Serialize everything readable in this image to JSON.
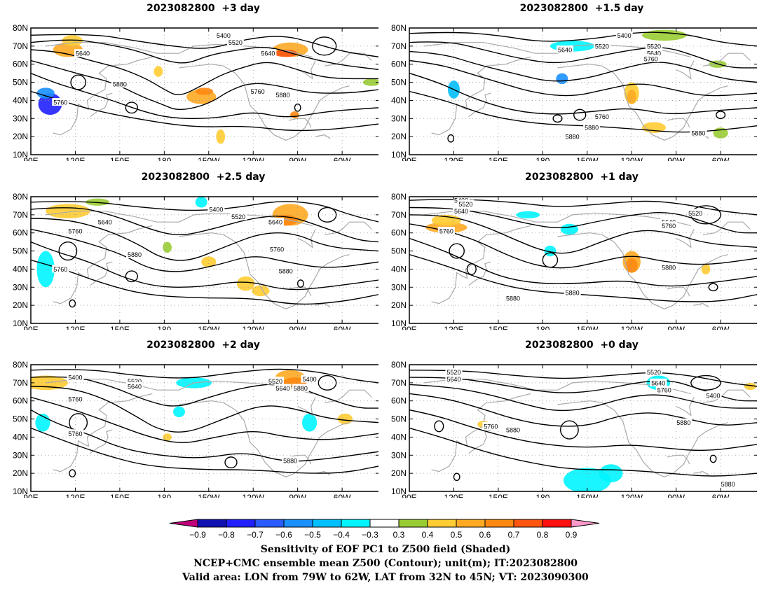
{
  "panels": [
    {
      "title": "2023082800  +3 day"
    },
    {
      "title": "2023082800  +1.5 day"
    },
    {
      "title": "2023082800  +2.5 day"
    },
    {
      "title": "2023082800  +1 day"
    },
    {
      "title": "2023082800  +2 day"
    },
    {
      "title": "2023082800  +0 day"
    }
  ],
  "map": {
    "lat_labels": [
      "80N",
      "70N",
      "60N",
      "50N",
      "40N",
      "30N",
      "20N",
      "10N"
    ],
    "lon_labels": [
      "90E",
      "120E",
      "150E",
      "180",
      "150W",
      "120W",
      "90W",
      "60W"
    ],
    "lat_range": [
      10,
      80
    ],
    "lon_range_east": [
      90,
      325
    ],
    "gridlines": "dotted"
  },
  "contour_labels": [
    [
      "5400",
      "5520",
      "5640",
      "5640",
      "5760",
      "5760",
      "5880",
      "5880"
    ],
    [
      "5400",
      "5520",
      "5640",
      "5520",
      "5640",
      "5760",
      "5760",
      "5880",
      "5880",
      "5880"
    ],
    [
      "5400",
      "5520",
      "5640",
      "5640",
      "5760",
      "5760",
      "5760",
      "5880",
      "5880"
    ],
    [
      "5400",
      "5520",
      "5640",
      "5760",
      "5520",
      "5640",
      "5760",
      "5880",
      "5880",
      "5880"
    ],
    [
      "5400",
      "5520",
      "5640",
      "5400",
      "5520",
      "5640",
      "5760",
      "5760",
      "5880",
      "5880"
    ],
    [
      "5520",
      "5640",
      "5520",
      "5640",
      "5760",
      "5400",
      "5760",
      "5880",
      "5880",
      "5880"
    ]
  ],
  "colorbar": {
    "ticks": [
      "−0.9",
      "−0.8",
      "−0.7",
      "−0.6",
      "−0.5",
      "−0.4",
      "−0.3",
      "0.3",
      "0.4",
      "0.5",
      "0.6",
      "0.7",
      "0.8",
      "0.9"
    ],
    "colors": [
      "#1010b0",
      "#2020ff",
      "#2a5cff",
      "#1a90ff",
      "#00bfff",
      "#00f5ff",
      "#ffffff",
      "#99cc33",
      "#ffcc33",
      "#ffaa22",
      "#ff8811",
      "#ff5511",
      "#ff1010"
    ],
    "low_end_color": "#c0007a",
    "high_end_color": "#ff99cc"
  },
  "captions": {
    "line1": "Sensitivity of EOF PC1 to Z500 field (Shaded)",
    "line2": "NCEP+CMC ensemble mean Z500 (Contour); unit(m); IT:2023082800",
    "line3": "Valid area: LON from 79W to 62W, LAT from 32N to 45N; VT: 2023090300"
  }
}
